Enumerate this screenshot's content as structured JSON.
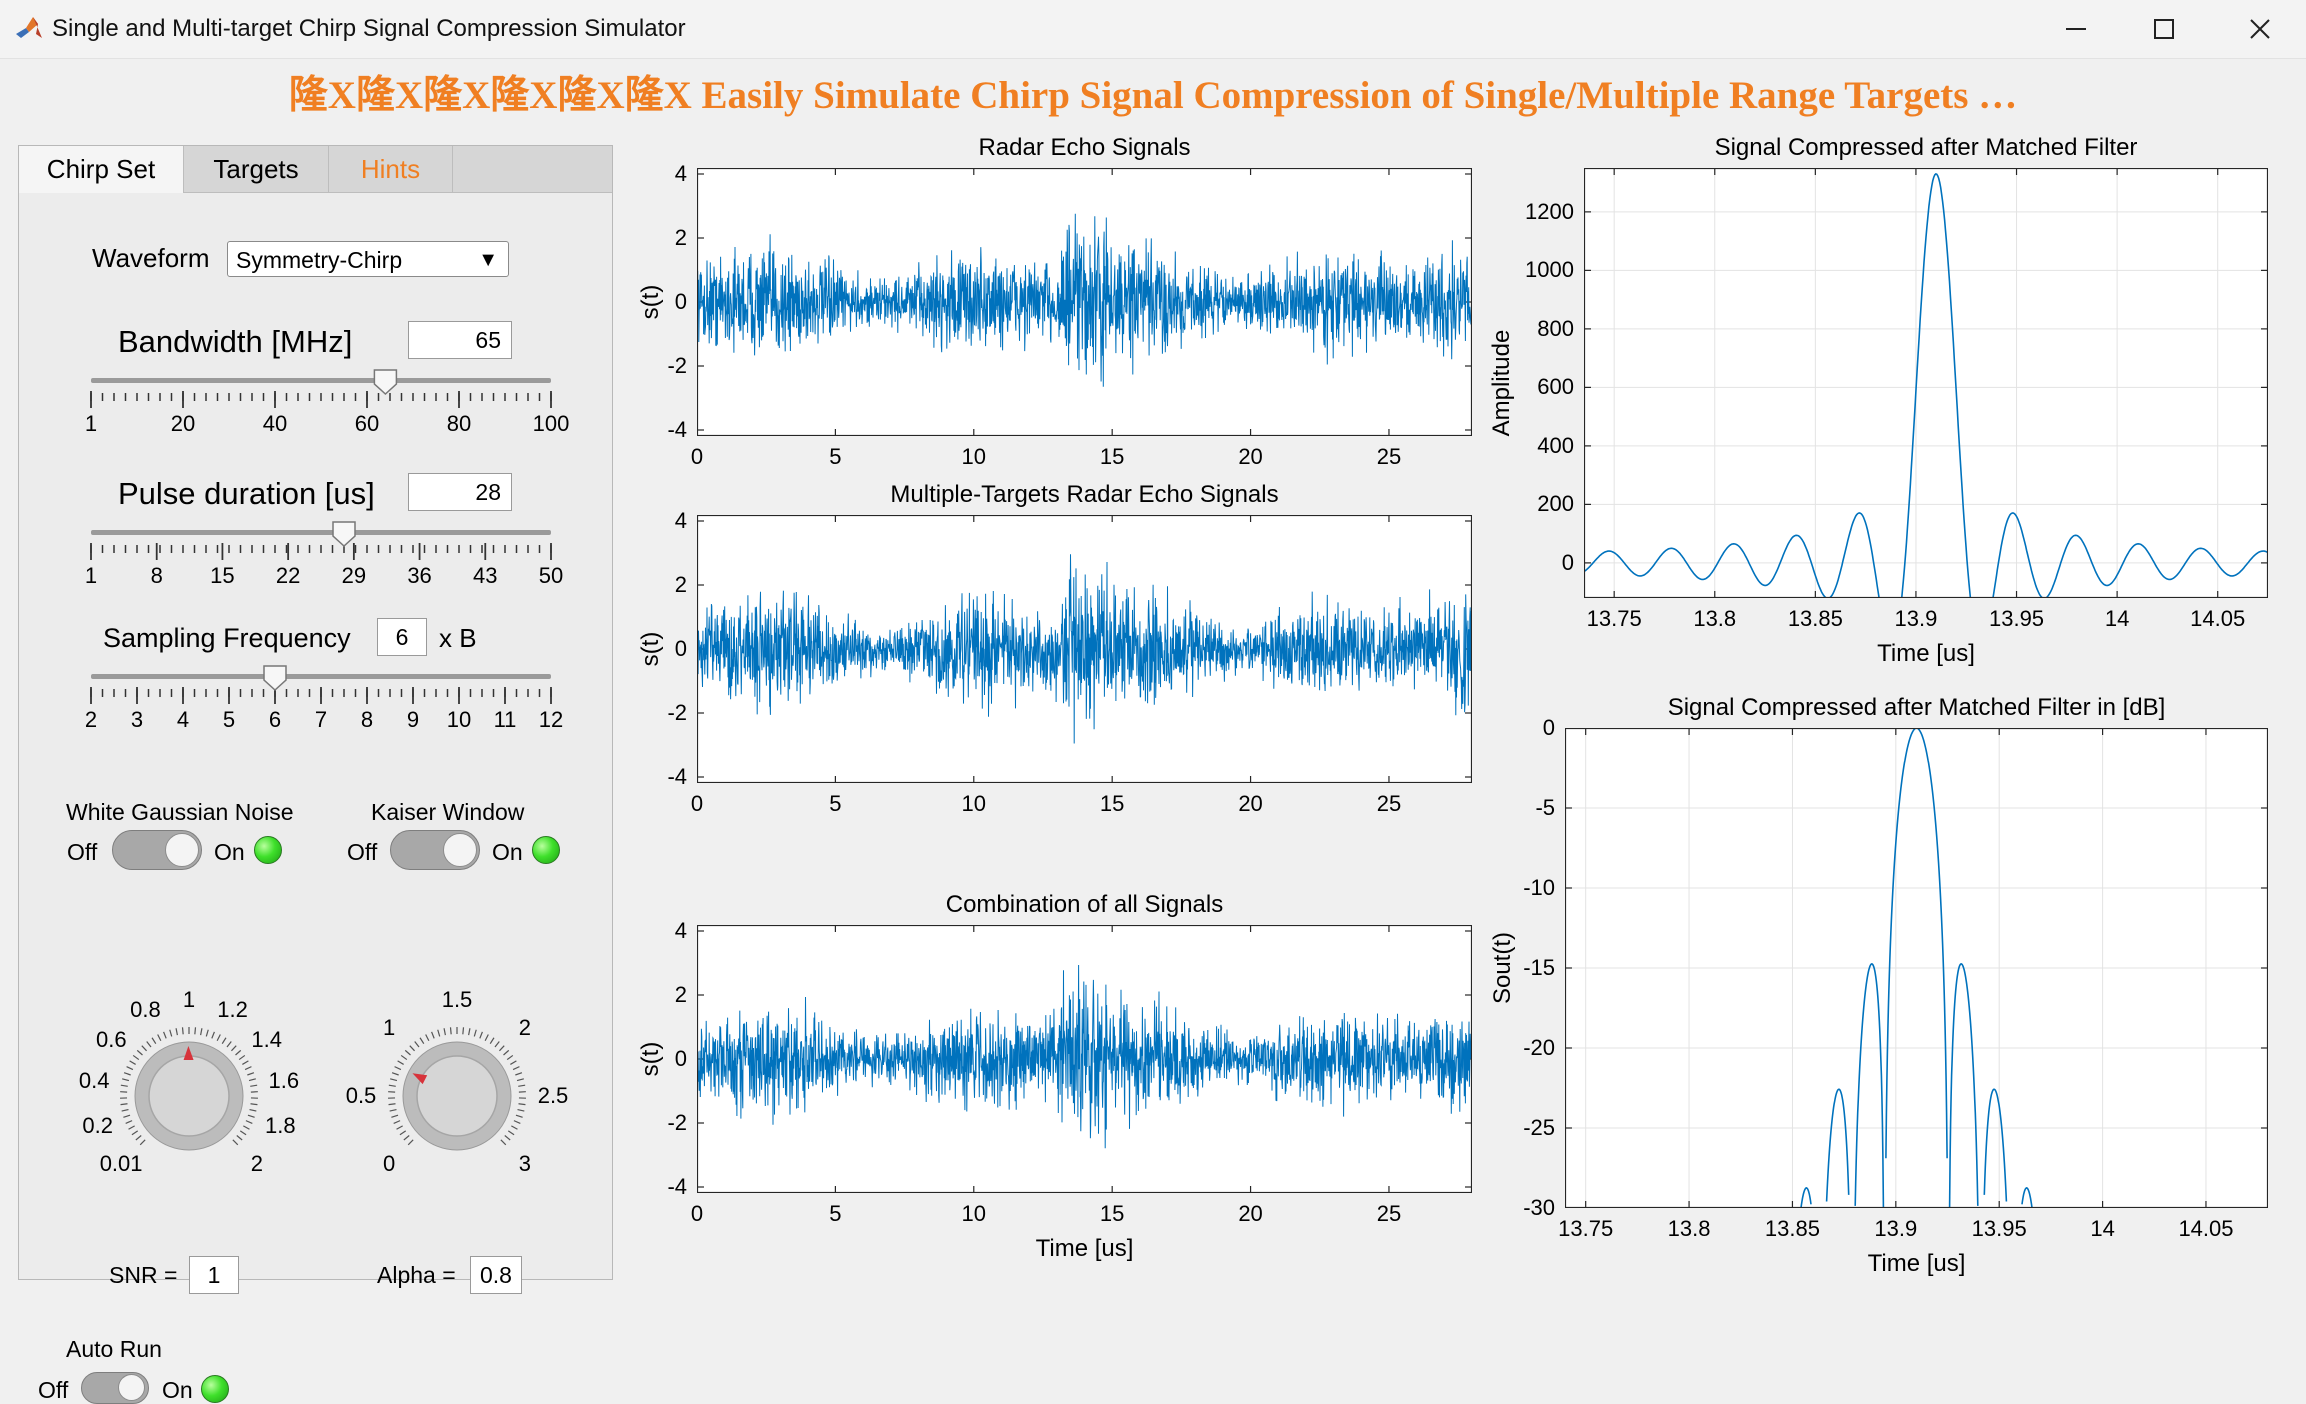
{
  "window": {
    "title": "Single and Multi-target Chirp Signal Compression Simulator"
  },
  "banner": "隆X隆X隆X隆X隆X隆X  Easily Simulate Chirp Signal Compression of Single/Multiple Range Targets  …",
  "tabs": [
    {
      "label": "Chirp Set",
      "active": true
    },
    {
      "label": "Targets",
      "active": false
    },
    {
      "label": "Hints",
      "active": false,
      "color": "#f07f22"
    }
  ],
  "chirp": {
    "waveform_label": "Waveform",
    "waveform_value": "Symmetry-Chirp",
    "bandwidth_label": "Bandwidth [MHz]",
    "bandwidth_value": "65",
    "bandwidth_ticks": [
      "1",
      "20",
      "40",
      "60",
      "80",
      "100"
    ],
    "bandwidth_fraction": 0.64,
    "pulse_label": "Pulse duration [us]",
    "pulse_value": "28",
    "pulse_ticks": [
      "1",
      "8",
      "15",
      "22",
      "29",
      "36",
      "43",
      "50"
    ],
    "pulse_fraction": 0.55,
    "fs_label": "Sampling Frequency",
    "fs_value": "6",
    "fs_unit": "x B",
    "fs_ticks": [
      "2",
      "3",
      "4",
      "5",
      "6",
      "7",
      "8",
      "9",
      "10",
      "11",
      "12"
    ],
    "fs_fraction": 0.4
  },
  "noise": {
    "label": "White Gaussian Noise",
    "off": "Off",
    "on": "On",
    "state": "on"
  },
  "kaiser": {
    "label": "Kaiser Window",
    "off": "Off",
    "on": "On",
    "state": "on"
  },
  "snr_knob": {
    "labels": [
      "0.01",
      "0.2",
      "0.4",
      "0.6",
      "0.8",
      "1",
      "1.2",
      "1.4",
      "1.6",
      "1.8",
      "2"
    ],
    "value_label": "SNR =",
    "value": "1"
  },
  "alpha_knob": {
    "labels": [
      "0",
      "0.5",
      "1",
      "1.5",
      "2",
      "2.5",
      "3"
    ],
    "value_label": "Alpha =",
    "value": "0.8"
  },
  "autorun": {
    "label": "Auto Run",
    "off": "Off",
    "on": "On",
    "state": "on"
  },
  "colors": {
    "line": "#0072bd",
    "accent": "#f07f22",
    "lamp": "#3fe02b",
    "needle": "#d7333b"
  },
  "plots": {
    "echo": {
      "title": "Radar Echo Signals",
      "ylabel": "s(t)",
      "xlabel": "",
      "xticks": [
        "0",
        "5",
        "10",
        "15",
        "20",
        "25"
      ],
      "yticks": [
        "4",
        "2",
        "0",
        "-2",
        "-4"
      ]
    },
    "multi": {
      "title": "Multiple-Targets  Radar Echo Signals",
      "ylabel": "s(t)",
      "xlabel": "",
      "xticks": [
        "0",
        "5",
        "10",
        "15",
        "20",
        "25"
      ],
      "yticks": [
        "4",
        "2",
        "0",
        "-2",
        "-4"
      ]
    },
    "combo": {
      "title": "Combination of all Signals",
      "ylabel": "s(t)",
      "xlabel": "Time [us]",
      "xticks": [
        "0",
        "5",
        "10",
        "15",
        "20",
        "25"
      ],
      "yticks": [
        "4",
        "2",
        "0",
        "-2",
        "-4"
      ]
    },
    "compressed": {
      "title": "Signal Compressed after Matched Filter",
      "ylabel": "Amplitude",
      "xlabel": "Time [us]",
      "xticks": [
        "13.75",
        "13.8",
        "13.85",
        "13.9",
        "13.95",
        "14",
        "14.05"
      ],
      "yticks": [
        "1200",
        "1000",
        "800",
        "600",
        "400",
        "200",
        "0"
      ]
    },
    "compressed_db": {
      "title": "Signal Compressed after Matched Filter in [dB]",
      "ylabel": "Sout(t)",
      "xlabel": "Time [us]",
      "xticks": [
        "13.75",
        "13.8",
        "13.85",
        "13.9",
        "13.95",
        "14",
        "14.05"
      ],
      "yticks": [
        "0",
        "-5",
        "-10",
        "-15",
        "-20",
        "-25",
        "-30"
      ]
    }
  }
}
